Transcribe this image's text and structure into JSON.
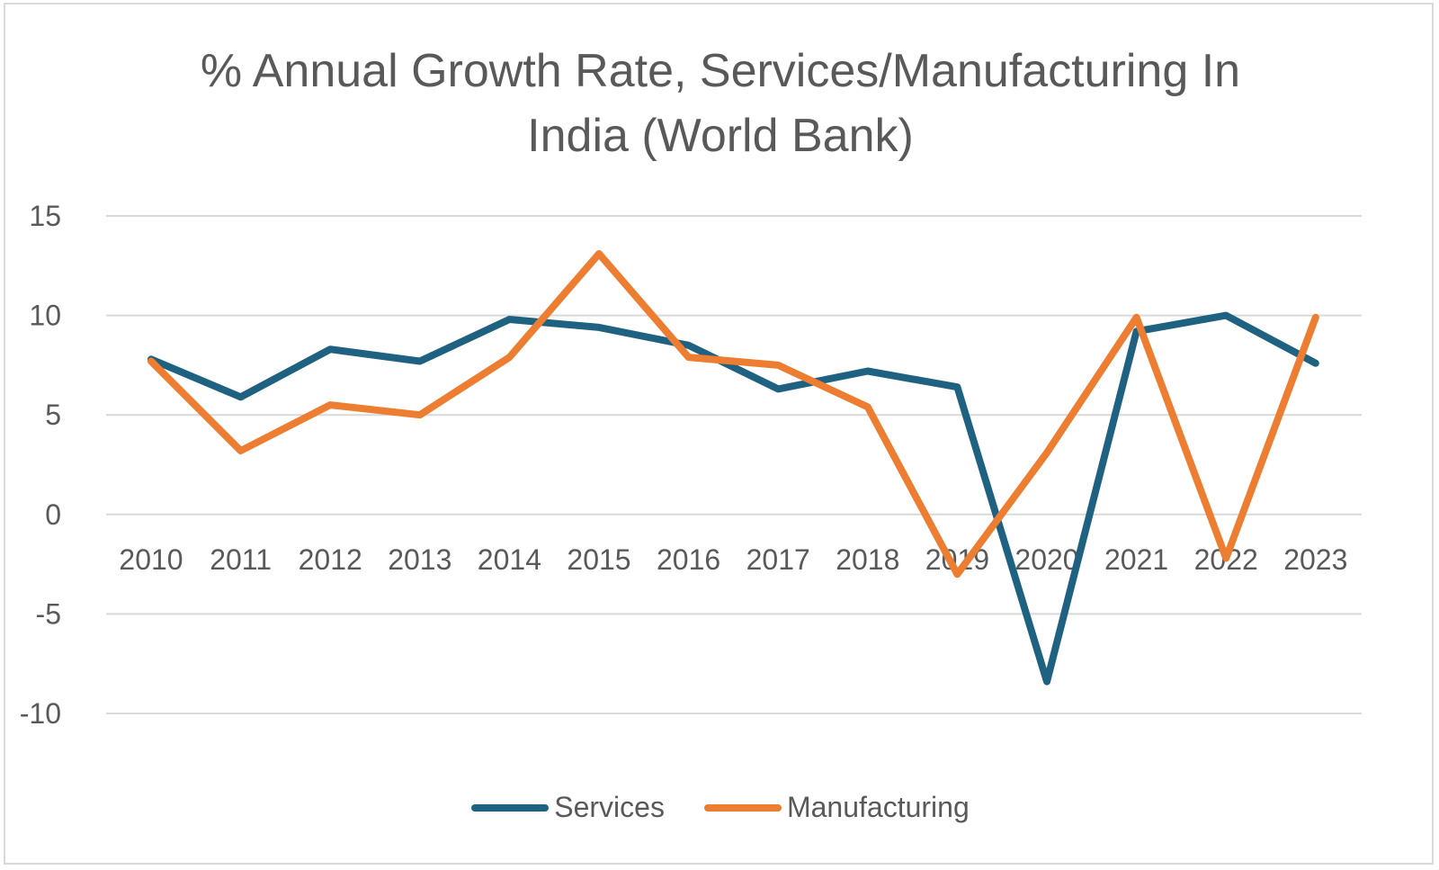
{
  "chart_data": {
    "type": "line",
    "title": [
      "% Annual Growth Rate, Services/Manufacturing In",
      "India (World Bank)"
    ],
    "categories": [
      "2010",
      "2011",
      "2012",
      "2013",
      "2014",
      "2015",
      "2016",
      "2017",
      "2018",
      "2019",
      "2020",
      "2021",
      "2022",
      "2023"
    ],
    "ylim": [
      -10,
      15
    ],
    "yticks": [
      "15",
      "10",
      "5",
      "0",
      "-5",
      "-10"
    ],
    "ytick_values": [
      15,
      10,
      5,
      0,
      -5,
      -10
    ],
    "grid": true,
    "legend_position": "bottom",
    "series": [
      {
        "name": "Services",
        "color": "#1f6180",
        "values": [
          7.8,
          5.9,
          8.3,
          7.7,
          9.8,
          9.4,
          8.5,
          6.3,
          7.2,
          6.4,
          -8.4,
          9.2,
          10.0,
          7.6
        ]
      },
      {
        "name": "Manufacturing",
        "color": "#ed7d31",
        "values": [
          7.7,
          3.2,
          5.5,
          5.0,
          7.9,
          13.1,
          7.9,
          7.5,
          5.4,
          -3.0,
          3.1,
          9.9,
          -2.2,
          9.9
        ]
      }
    ]
  }
}
